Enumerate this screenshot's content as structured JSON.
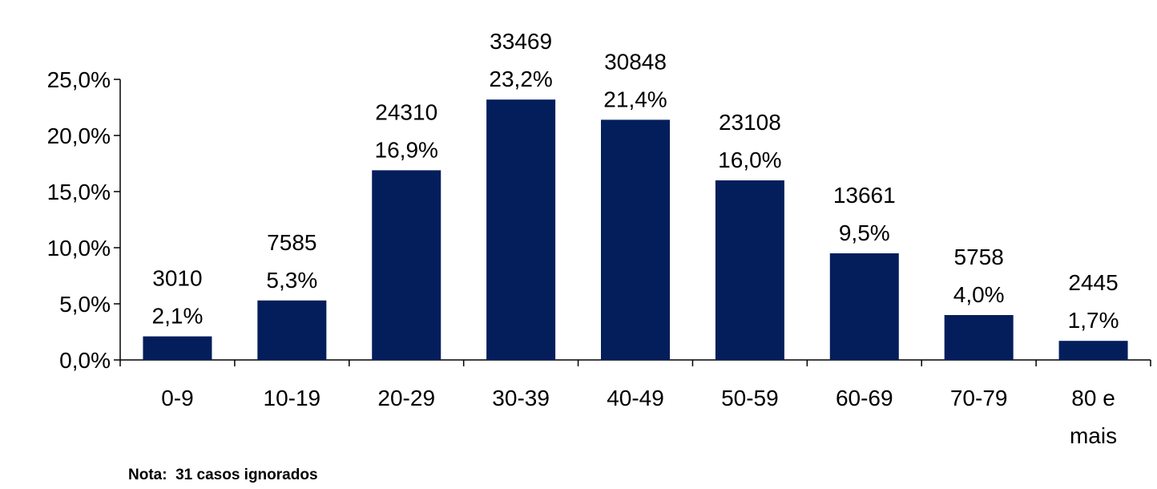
{
  "chart_data": {
    "type": "bar",
    "categories": [
      "0-9",
      "10-19",
      "20-29",
      "30-39",
      "40-49",
      "50-59",
      "60-69",
      "70-79",
      "80 e mais"
    ],
    "values": [
      2.1,
      5.3,
      16.9,
      23.2,
      21.4,
      16.0,
      9.5,
      4.0,
      1.7
    ],
    "counts": [
      "3010",
      "7585",
      "24310",
      "33469",
      "30848",
      "23108",
      "13661",
      "5758",
      "2445"
    ],
    "percent_labels": [
      "2,1%",
      "5,3%",
      "16,9%",
      "23,2%",
      "21,4%",
      "16,0%",
      "9,5%",
      "4,0%",
      "1,7%"
    ],
    "y_ticks": [
      "0,0%",
      "5,0%",
      "10,0%",
      "15,0%",
      "20,0%",
      "25,0%"
    ],
    "ylim": [
      0,
      25
    ],
    "bar_color": "#041E5C",
    "grid": false,
    "legend": "none"
  },
  "footnote": "Nota:  31 casos ignorados"
}
